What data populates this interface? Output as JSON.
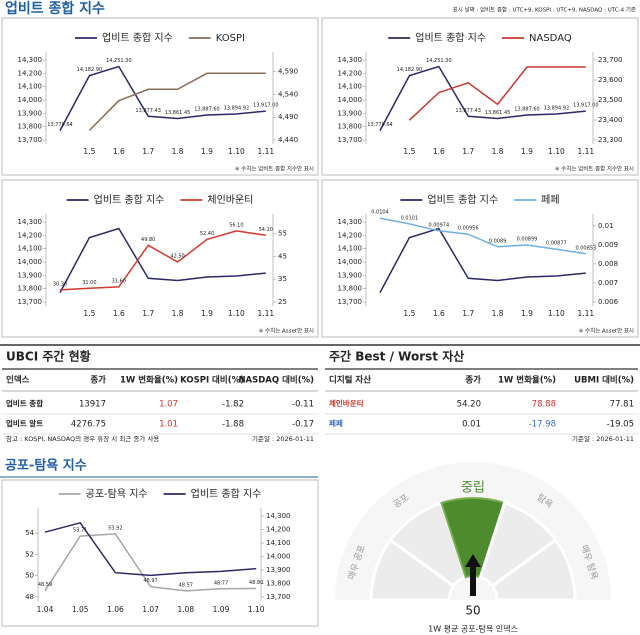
{
  "header": {
    "title": "업비트 종합 지수",
    "note": "표시 날짜 : 업비트 종합 : UTC+9, KOSPI : UTC+9, NASDAQ : UTC-4 기준"
  },
  "charts": [
    {
      "type": "line",
      "categories": [
        null,
        "1.5",
        "1.6",
        "1.7",
        "1.8",
        "1.9",
        "1.10",
        "1.11"
      ],
      "series": [
        {
          "name": "업비트 종합 지수",
          "color": "#2b2a66",
          "values": [
            13770.64,
            14182.9,
            14251.3,
            13877.43,
            13861.45,
            13887.6,
            13894.92,
            13917
          ],
          "value_labels": [
            "13,770.64",
            "14,182.90",
            "14,251.30",
            "13,877.43",
            "13,861.45",
            "13,887.60",
            "13,894.92",
            "13,917.00"
          ],
          "data_labels": true
        },
        {
          "name": "KOSPI",
          "color": "#8c6d57",
          "axis": "y2",
          "values": [
            null,
            4461,
            4526,
            4551,
            4551,
            4586,
            4586,
            4586
          ]
        }
      ],
      "ylim": [
        13700,
        14300
      ],
      "yticks": [
        {
          "value": 13700,
          "label": "13,700"
        },
        {
          "value": 13800,
          "label": "13,800"
        },
        {
          "value": 13900,
          "label": "13,900"
        },
        {
          "value": 14000,
          "label": "14,000"
        },
        {
          "value": 14100,
          "label": "14,100"
        },
        {
          "value": 14200,
          "label": "14,200"
        },
        {
          "value": 14300,
          "label": "14,300"
        }
      ],
      "y2lim": [
        4440,
        4615
      ],
      "y2ticks": [
        {
          "value": 4440,
          "label": "4,440"
        },
        {
          "value": 4490,
          "label": "4,490"
        },
        {
          "value": 4540,
          "label": "4,540"
        },
        {
          "value": 4590,
          "label": "4,590"
        }
      ],
      "note": "※ 수치는 업비트 종합 지수만 표시"
    },
    {
      "type": "line",
      "categories": [
        null,
        "1.5",
        "1.6",
        "1.7",
        "1.8",
        "1.9",
        "1.10",
        "1.11"
      ],
      "series": [
        {
          "name": "업비트 종합 지수",
          "color": "#2b2a66",
          "values": [
            13770.64,
            14182.9,
            14251.3,
            13877.43,
            13861.45,
            13887.6,
            13894.92,
            13917
          ],
          "value_labels": [
            "13,770.64",
            "14,182.90",
            "14,251.30",
            "13,877.43",
            "13,861.45",
            "13,887.60",
            "13,894.92",
            "13,917.00"
          ],
          "data_labels": true
        },
        {
          "name": "NASDAQ",
          "color": "#c8372d",
          "axis": "y2",
          "values": [
            null,
            23399,
            23537,
            23586,
            23478,
            23665,
            23665,
            23665
          ]
        }
      ],
      "ylim": [
        13700,
        14300
      ],
      "yticks": [
        {
          "value": 13700,
          "label": "13,700"
        },
        {
          "value": 13800,
          "label": "13,800"
        },
        {
          "value": 13900,
          "label": "13,900"
        },
        {
          "value": 14000,
          "label": "14,000"
        },
        {
          "value": 14100,
          "label": "14,100"
        },
        {
          "value": 14200,
          "label": "14,200"
        },
        {
          "value": 14300,
          "label": "14,300"
        }
      ],
      "y2lim": [
        23300,
        23700
      ],
      "y2ticks": [
        {
          "value": 23300,
          "label": "23,300"
        },
        {
          "value": 23400,
          "label": "23,400"
        },
        {
          "value": 23500,
          "label": "23,500"
        },
        {
          "value": 23600,
          "label": "23,600"
        },
        {
          "value": 23700,
          "label": "23,700"
        }
      ],
      "note": "※ 수치는 업비트 종합 지수만 표시"
    },
    {
      "type": "line",
      "categories": [
        null,
        "1.5",
        "1.6",
        "1.7",
        "1.8",
        "1.9",
        "1.10",
        "1.11"
      ],
      "series": [
        {
          "name": "업비트 종합 지수",
          "color": "#2b2a66",
          "values": [
            13770.64,
            14182.9,
            14251.3,
            13877.43,
            13861.45,
            13887.6,
            13894.92,
            13917
          ]
        },
        {
          "name": "체인바운티",
          "color": "#d33a2c",
          "axis": "y2",
          "values": [
            30.3,
            31,
            31.6,
            49.8,
            42.5,
            52.4,
            56.1,
            54.2
          ],
          "value_labels": [
            "30.30",
            "31.00",
            "31.60",
            "49.80",
            "42.50",
            "52.40",
            "56.10",
            "54.20"
          ],
          "data_labels": true
        }
      ],
      "ylim": [
        13700,
        14300
      ],
      "yticks": [
        {
          "value": 13700,
          "label": "13,700"
        },
        {
          "value": 13800,
          "label": "13,800"
        },
        {
          "value": 13900,
          "label": "13,900"
        },
        {
          "value": 14000,
          "label": "14,000"
        },
        {
          "value": 14100,
          "label": "14,100"
        },
        {
          "value": 14200,
          "label": "14,200"
        },
        {
          "value": 14300,
          "label": "14,300"
        }
      ],
      "y2lim": [
        25,
        60
      ],
      "y2ticks": [
        25,
        35,
        45,
        55
      ],
      "note": "※ 수치는 Asset만 표시"
    },
    {
      "type": "line",
      "categories": [
        null,
        "1.5",
        "1.6",
        "1.7",
        "1.8",
        "1.9",
        "1.10",
        "1.11"
      ],
      "series": [
        {
          "name": "업비트 종합 지수",
          "color": "#2b2a66",
          "values": [
            13770.64,
            14182.9,
            14251.3,
            13877.43,
            13861.45,
            13887.6,
            13894.92,
            13917
          ]
        },
        {
          "name": "페페",
          "color": "#6fb0e4",
          "axis": "y2",
          "values": [
            0.0104,
            0.0101,
            0.00974,
            0.00956,
            0.0089,
            0.00899,
            0.00877,
            0.00853
          ],
          "data_labels": true
        }
      ],
      "ylim": [
        13700,
        14300
      ],
      "yticks": [
        {
          "value": 13700,
          "label": "13,700"
        },
        {
          "value": 13800,
          "label": "13,800"
        },
        {
          "value": 13900,
          "label": "13,900"
        },
        {
          "value": 14000,
          "label": "14,000"
        },
        {
          "value": 14100,
          "label": "14,100"
        },
        {
          "value": 14200,
          "label": "14,200"
        },
        {
          "value": 14300,
          "label": "14,300"
        }
      ],
      "y2lim": [
        0.006,
        0.0102
      ],
      "y2ticks": [
        0.006,
        0.007,
        0.008,
        0.009,
        0.01
      ],
      "note": "※ 수치는 Asset만 표시"
    }
  ],
  "tables": [
    {
      "title": "UBCI 주간 현황",
      "columns": [
        "인덱스",
        "종가",
        "1W 변화율(%)",
        "KOSPI 대비(%)",
        "NASDAQ 대비(%)"
      ],
      "rows": [
        [
          "업비트 종합",
          13917,
          1.07,
          -1.82,
          -0.11
        ],
        [
          "업비트 알트",
          4276.75,
          1.01,
          -1.88,
          -0.17
        ]
      ],
      "sign_color_column": 2,
      "color_names": false,
      "note": "참고 : KOSPI, NASDAQ의 경우 휴장 시 최근 종가 사용",
      "date": "기준일 : 2026-01-11"
    },
    {
      "title": "주간 Best / Worst 자산",
      "columns": [
        "디지털 자산",
        "종가",
        "1W 변화율(%)",
        "UBMI 대비(%)"
      ],
      "rows": [
        [
          "체인바운티",
          "54.20",
          78.88,
          77.81
        ],
        [
          "페페",
          0.01,
          -17.98,
          -19.05
        ]
      ],
      "sign_color_column": 2,
      "color_names": true,
      "date": "기준일 : 2026-01-11"
    }
  ],
  "up_color": "#d9342b",
  "down_color": "#3b6fc6",
  "fear_greed": {
    "title": "공포-탐욕 지수",
    "chart": {
      "type": "line",
      "categories": [
        "1.04",
        "1.05",
        "1.06",
        "1.07",
        "1.08",
        "1.09",
        "1.10"
      ],
      "series": [
        {
          "name": "공포-탐욕 지수",
          "color": "#a6a6a6",
          "values": [
            48.59,
            53.71,
            53.92,
            48.97,
            48.57,
            48.77,
            48.8
          ],
          "value_labels": [
            "48.59",
            "53.71",
            "53.92",
            "48.97",
            "48.57",
            "48.77",
            "48.80"
          ],
          "data_labels": true
        },
        {
          "name": "업비트 종합 지수",
          "color": "#2b2a66",
          "axis": "y2",
          "values": [
            14180,
            14250,
            13880,
            13860,
            13880,
            13890,
            13910
          ]
        }
      ],
      "ylim": [
        48,
        55.6
      ],
      "yticks": [
        48,
        50,
        52,
        54
      ],
      "y2lim": [
        13700,
        14300
      ],
      "y2ticks": [
        {
          "value": 13700,
          "label": "13,700"
        },
        {
          "value": 13800,
          "label": "13,800"
        },
        {
          "value": 13900,
          "label": "13,900"
        },
        {
          "value": 14000,
          "label": "14,000"
        },
        {
          "value": 14100,
          "label": "14,100"
        },
        {
          "value": 14200,
          "label": "14,200"
        },
        {
          "value": 14300,
          "label": "14,300"
        }
      ]
    },
    "gauge": {
      "type": "gauge",
      "value": 50,
      "zones": [
        "매우 공포",
        "공포",
        "중립",
        "탐욕",
        "매우 탐욕"
      ],
      "highlight_color": "#4e8a2e",
      "caption": "1W 평균 공포-탐욕 인덱스"
    }
  }
}
